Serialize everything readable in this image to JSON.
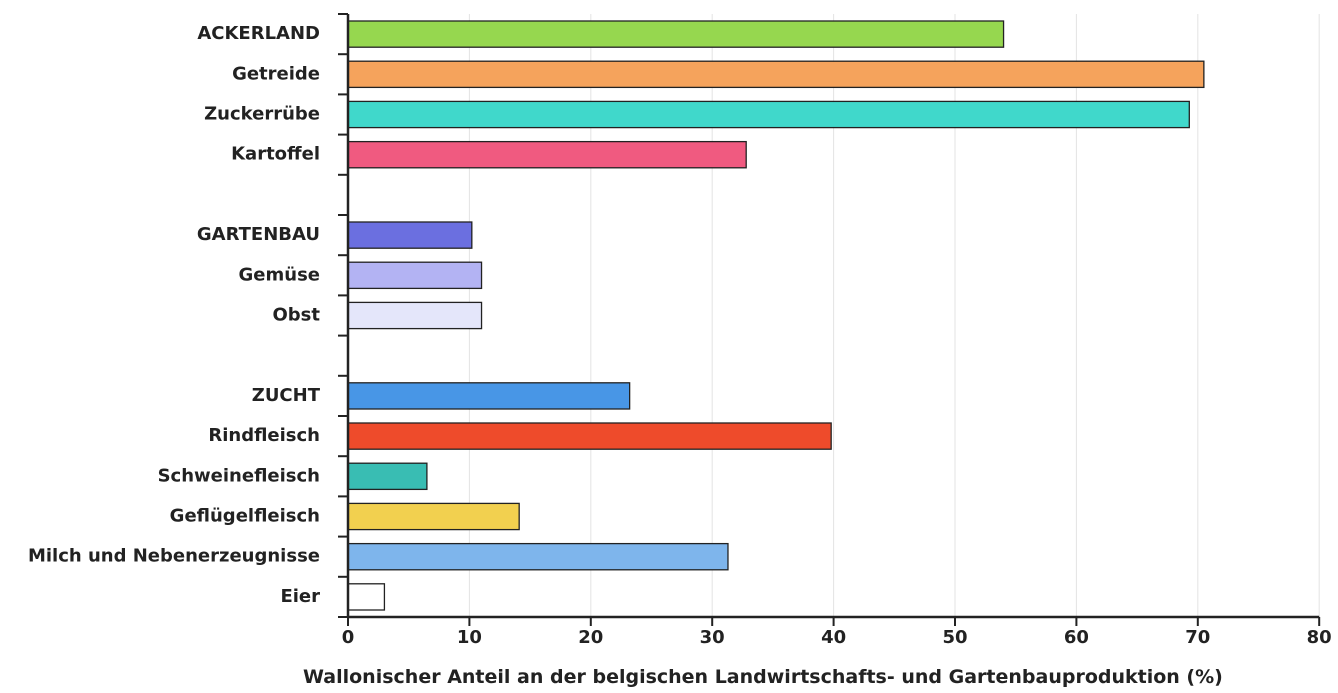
{
  "chart_data": {
    "type": "bar",
    "orientation": "horizontal",
    "categories": [
      "ACKERLAND",
      "Getreide",
      "Zuckerrübe",
      "Kartoffel",
      "",
      "GARTENBAU",
      "Gemüse",
      "Obst",
      "",
      "ZUCHT",
      "Rindfleisch",
      "Schweinefleisch",
      "Geflügelfleisch",
      "Milch und Nebenerzeugnisse",
      "Eier"
    ],
    "values": [
      54,
      70.5,
      69.3,
      32.8,
      null,
      10.2,
      11,
      11,
      null,
      23.2,
      39.8,
      6.5,
      14.1,
      31.3,
      3
    ],
    "colors": [
      "#96d74f",
      "#f5a35c",
      "#40d8cb",
      "#f05a80",
      null,
      "#6b6fe0",
      "#b3b3f3",
      "#e4e6fa",
      null,
      "#4896e6",
      "#ee4b2b",
      "#39bdb3",
      "#f2d04f",
      "#7eb5ec",
      "#ffffff"
    ],
    "xlabel": "Wallonischer Anteil an der belgischen Landwirtschafts- und Gartenbauproduktion (%)",
    "xlim": [
      0,
      80
    ],
    "xticks": [
      0,
      10,
      20,
      30,
      40,
      50,
      60,
      70,
      80
    ],
    "grid": "vertical"
  }
}
